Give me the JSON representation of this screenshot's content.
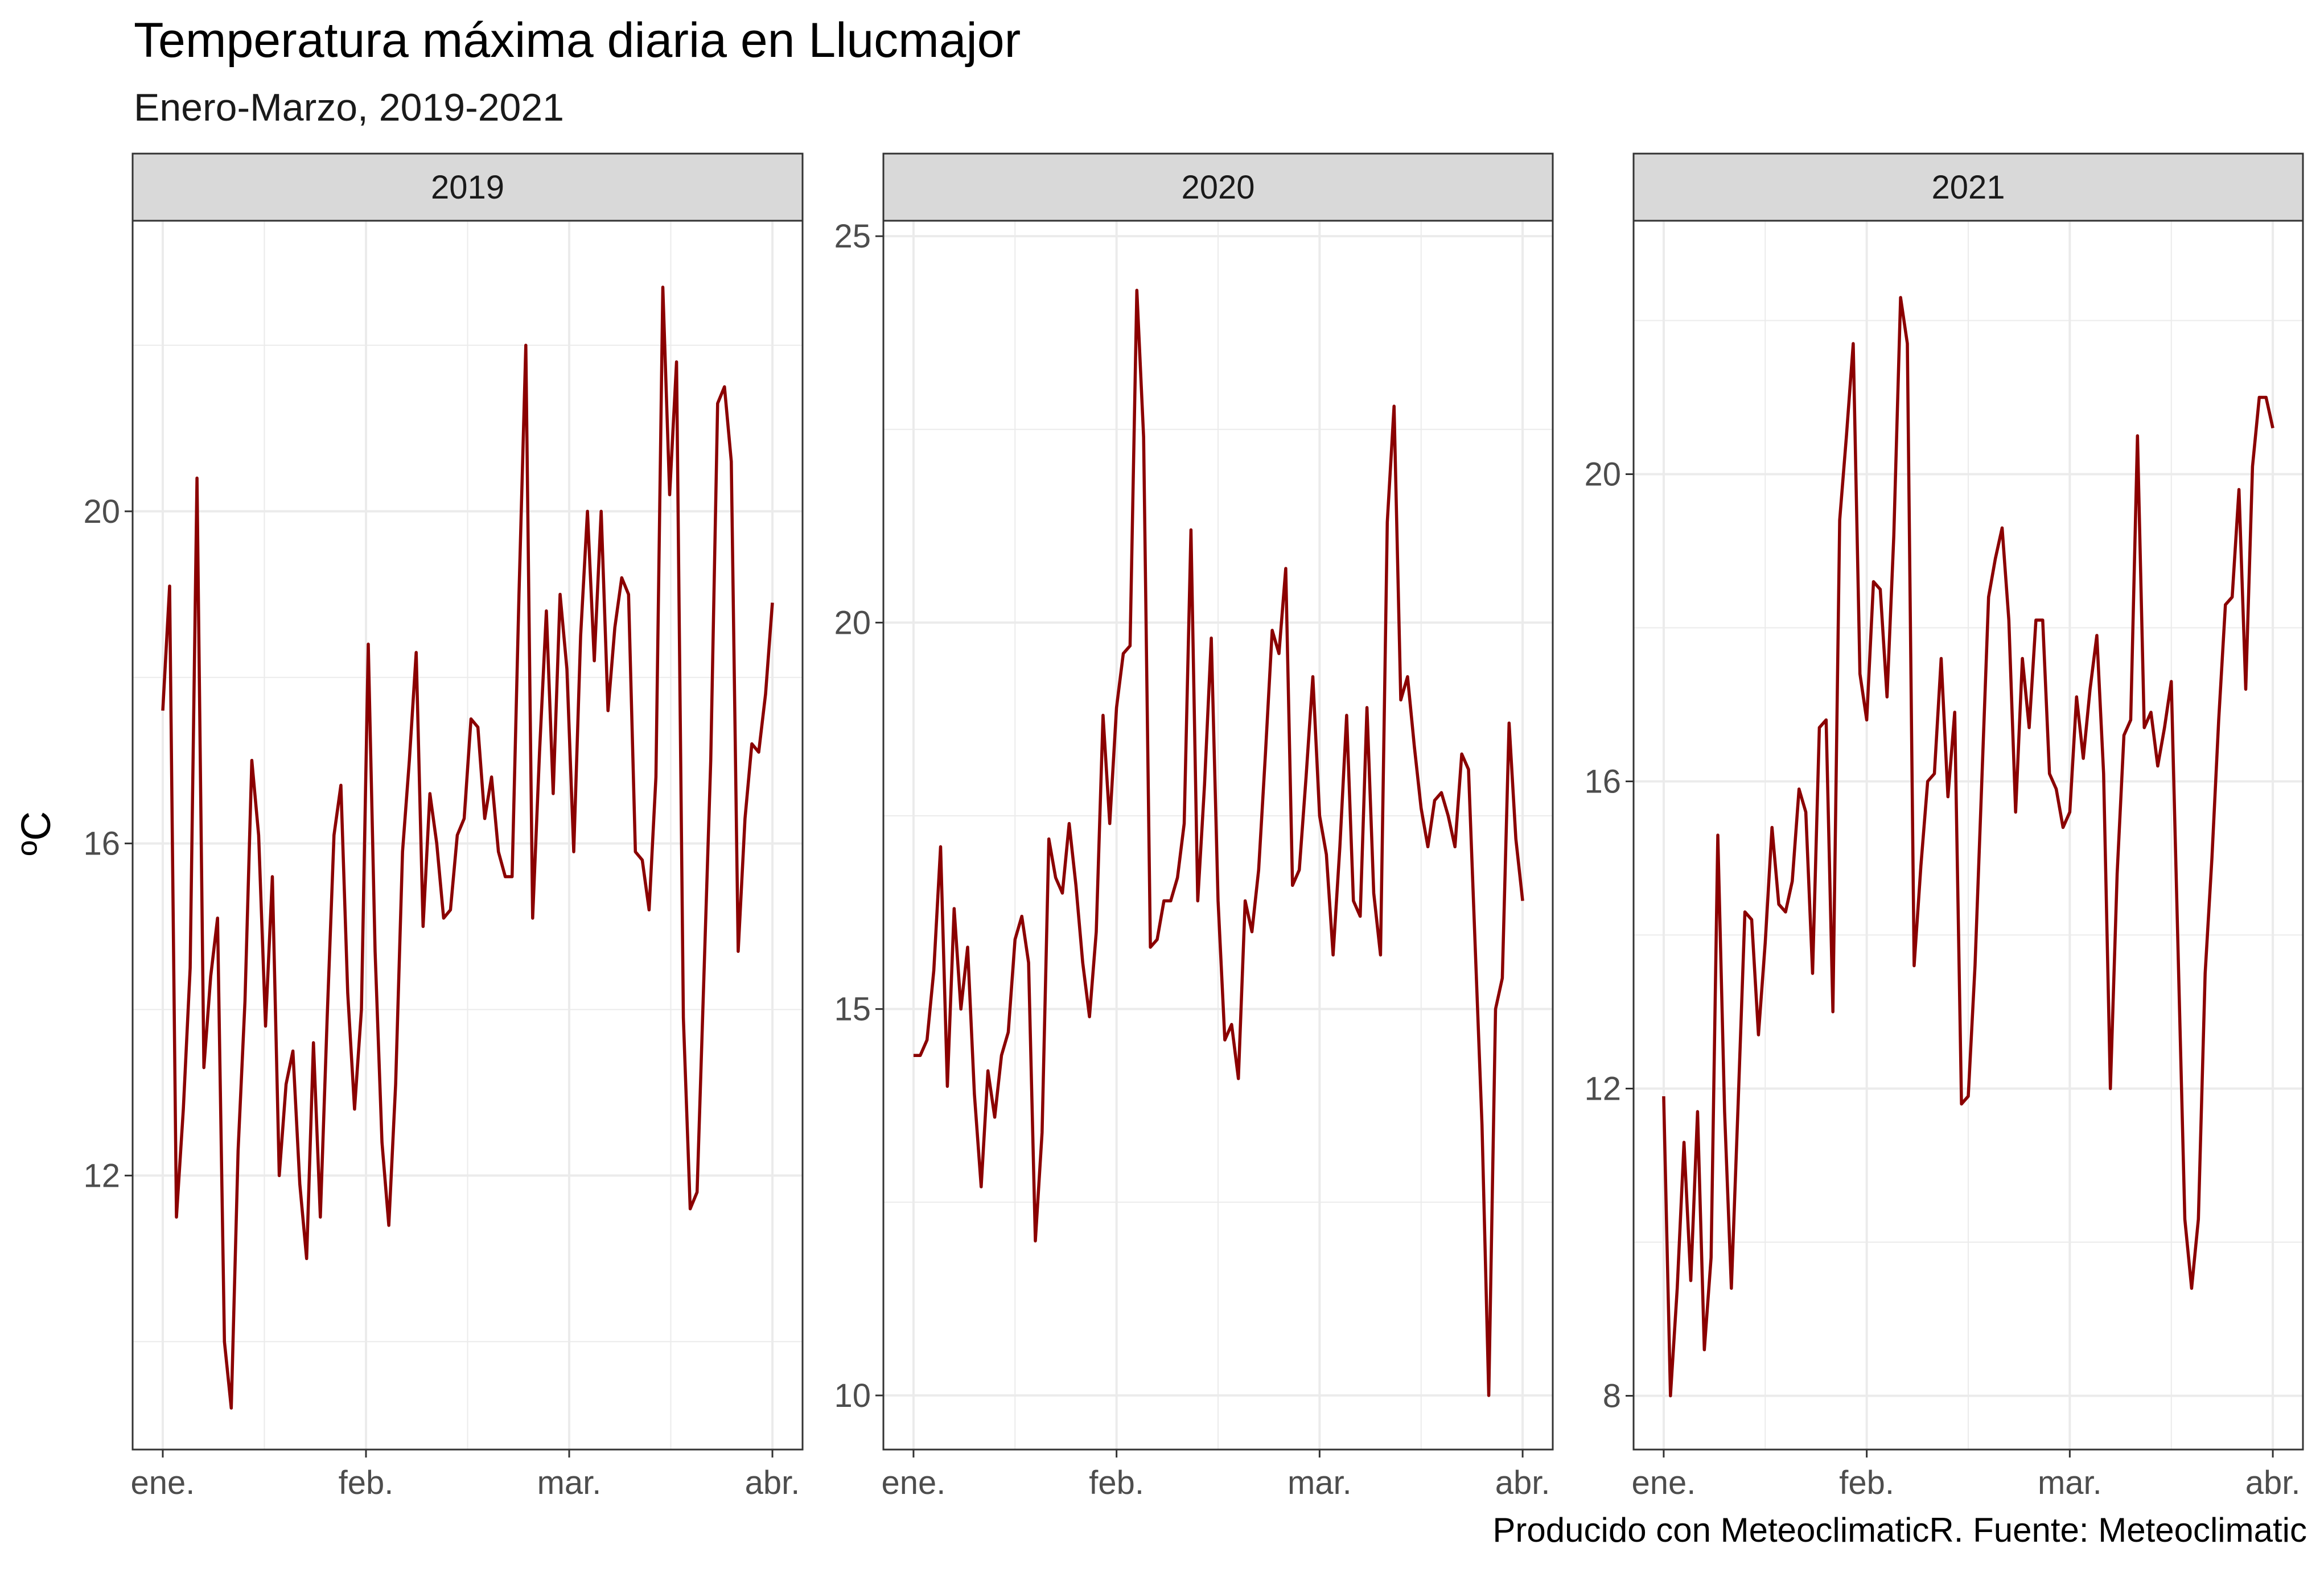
{
  "title": "Temperatura máxima diaria en Llucmajor",
  "subtitle": "Enero-Marzo, 2019-2021",
  "caption": "Producido con MeteoclimaticR. Fuente: Meteoclimatic",
  "colors": {
    "line": "#8B0000",
    "grid": "#ebebeb",
    "strip": "#d9d9d9",
    "border": "#333333"
  },
  "chart_data": {
    "type": "line",
    "ylabel": "ºC",
    "xlabel": "",
    "x_ticks": [
      "ene.",
      "feb.",
      "mar.",
      "abr."
    ],
    "panels": [
      {
        "label": "2019",
        "ylim": [
          8.7,
          23.5
        ],
        "y_ticks": [
          12,
          16,
          20
        ],
        "values": [
          17.6,
          19.1,
          11.5,
          12.8,
          14.5,
          20.4,
          13.3,
          14.4,
          15.1,
          10.0,
          9.2,
          12.3,
          14.1,
          17.0,
          16.1,
          13.8,
          15.6,
          12.0,
          13.1,
          13.5,
          11.9,
          11.0,
          13.6,
          11.5,
          13.9,
          16.1,
          16.7,
          14.2,
          12.8,
          14.0,
          18.4,
          14.7,
          12.4,
          11.4,
          13.1,
          15.9,
          17.0,
          18.3,
          15.0,
          16.6,
          16.0,
          15.1,
          15.2,
          16.1,
          16.3,
          17.5,
          17.4,
          16.3,
          16.8,
          15.9,
          15.6,
          15.6,
          19.0,
          22.0,
          15.1,
          17.1,
          18.8,
          16.6,
          19.0,
          18.1,
          15.9,
          18.5,
          20.0,
          18.2,
          20.0,
          17.6,
          18.6,
          19.2,
          19.0,
          15.9,
          15.8,
          15.2,
          16.8,
          22.7,
          20.2,
          21.8,
          13.9,
          11.6,
          11.8,
          14.4,
          17.0,
          21.3,
          21.5,
          20.6,
          14.7,
          16.3,
          17.2,
          17.1,
          17.8,
          18.9
        ]
      },
      {
        "label": "2020",
        "ylim": [
          9.3,
          25.2
        ],
        "y_ticks": [
          10,
          15,
          20,
          25
        ],
        "values": [
          14.4,
          14.4,
          14.6,
          15.5,
          17.1,
          14.0,
          16.3,
          15.0,
          15.8,
          13.9,
          12.7,
          14.2,
          13.6,
          14.4,
          14.7,
          15.9,
          16.2,
          15.6,
          12.0,
          13.4,
          17.2,
          16.7,
          16.5,
          17.4,
          16.6,
          15.6,
          14.9,
          16.0,
          18.8,
          17.4,
          18.9,
          19.6,
          19.7,
          24.3,
          22.4,
          15.8,
          15.9,
          16.4,
          16.4,
          16.7,
          17.4,
          21.2,
          16.4,
          17.9,
          19.8,
          16.4,
          14.6,
          14.8,
          14.1,
          16.4,
          16.0,
          16.8,
          18.3,
          19.9,
          19.6,
          20.7,
          16.6,
          16.8,
          18.0,
          19.3,
          17.5,
          17.0,
          15.7,
          17.1,
          18.8,
          16.4,
          16.2,
          18.9,
          16.5,
          15.7,
          21.3,
          22.8,
          19.0,
          19.3,
          18.4,
          17.6,
          17.1,
          17.7,
          17.8,
          17.5,
          17.1,
          18.3,
          18.1,
          15.8,
          13.5,
          10.0,
          15.0,
          15.4,
          18.7,
          17.2,
          16.4
        ]
      },
      {
        "label": "2021",
        "ylim": [
          7.3,
          23.3
        ],
        "y_ticks": [
          8,
          12,
          16,
          20
        ],
        "values": [
          11.9,
          8.0,
          9.4,
          11.3,
          9.5,
          11.7,
          8.6,
          9.8,
          15.3,
          11.7,
          9.4,
          11.8,
          14.3,
          14.2,
          12.7,
          13.9,
          15.4,
          14.4,
          14.3,
          14.7,
          15.9,
          15.6,
          13.5,
          16.7,
          16.8,
          13.0,
          19.4,
          20.5,
          21.7,
          17.4,
          16.8,
          18.6,
          18.5,
          17.1,
          19.2,
          22.3,
          21.7,
          13.6,
          14.9,
          16.0,
          16.1,
          17.6,
          15.8,
          16.9,
          11.8,
          11.9,
          13.6,
          16.0,
          18.4,
          18.9,
          19.3,
          18.1,
          15.6,
          17.6,
          16.7,
          18.1,
          18.1,
          16.1,
          15.9,
          15.4,
          15.6,
          17.1,
          16.3,
          17.2,
          17.9,
          16.1,
          12.0,
          14.8,
          16.6,
          16.8,
          20.5,
          16.7,
          16.9,
          16.2,
          16.7,
          17.3,
          13.8,
          10.3,
          9.4,
          10.3,
          13.5,
          15.0,
          16.8,
          18.3,
          18.4,
          19.8,
          17.2,
          20.1,
          21.0,
          21.0,
          20.6
        ]
      }
    ]
  }
}
